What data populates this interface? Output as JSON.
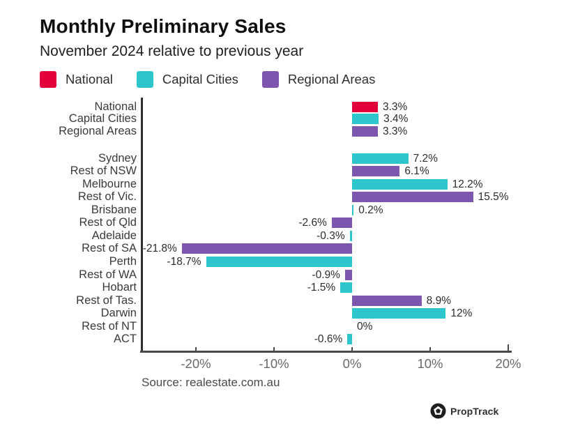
{
  "header": {
    "title": "Monthly Preliminary Sales",
    "subtitle": "November 2024 relative to previous year"
  },
  "legend": [
    {
      "label": "National",
      "color": "#e4003b"
    },
    {
      "label": "Capital Cities",
      "color": "#2fc5cc"
    },
    {
      "label": "Regional Areas",
      "color": "#7d57ae"
    }
  ],
  "chart_data": {
    "type": "bar",
    "orientation": "horizontal",
    "title": "Monthly Preliminary Sales",
    "subtitle": "November 2024 relative to previous year",
    "xlabel": "",
    "ylabel": "",
    "xlim": [
      -27,
      20.5
    ],
    "x_tick_labels": [
      "-20%",
      "-10%",
      "0%",
      "10%",
      "20%"
    ],
    "x_tick_values": [
      -20,
      -10,
      0,
      10,
      20
    ],
    "grid": false,
    "legend_position": "top",
    "series_colors": {
      "National": "#e4003b",
      "Capital Cities": "#2fc5cc",
      "Regional Areas": "#7d57ae"
    },
    "rows": [
      {
        "category": "National",
        "value": 3.3,
        "label": "3.3%",
        "series": "National",
        "group": "summary"
      },
      {
        "category": "Capital Cities",
        "value": 3.4,
        "label": "3.4%",
        "series": "Capital Cities",
        "group": "summary"
      },
      {
        "category": "Regional Areas",
        "value": 3.3,
        "label": "3.3%",
        "series": "Regional Areas",
        "group": "summary"
      },
      {
        "category": "Sydney",
        "value": 7.2,
        "label": "7.2%",
        "series": "Capital Cities",
        "group": "regions"
      },
      {
        "category": "Rest of NSW",
        "value": 6.1,
        "label": "6.1%",
        "series": "Regional Areas",
        "group": "regions"
      },
      {
        "category": "Melbourne",
        "value": 12.2,
        "label": "12.2%",
        "series": "Capital Cities",
        "group": "regions"
      },
      {
        "category": "Rest of Vic.",
        "value": 15.5,
        "label": "15.5%",
        "series": "Regional Areas",
        "group": "regions"
      },
      {
        "category": "Brisbane",
        "value": 0.2,
        "label": "0.2%",
        "series": "Capital Cities",
        "group": "regions"
      },
      {
        "category": "Rest of Qld",
        "value": -2.6,
        "label": "-2.6%",
        "series": "Regional Areas",
        "group": "regions"
      },
      {
        "category": "Adelaide",
        "value": -0.3,
        "label": "-0.3%",
        "series": "Capital Cities",
        "group": "regions"
      },
      {
        "category": "Rest of SA",
        "value": -21.8,
        "label": "-21.8%",
        "series": "Regional Areas",
        "group": "regions"
      },
      {
        "category": "Perth",
        "value": -18.7,
        "label": "-18.7%",
        "series": "Capital Cities",
        "group": "regions"
      },
      {
        "category": "Rest of WA",
        "value": -0.9,
        "label": "-0.9%",
        "series": "Regional Areas",
        "group": "regions"
      },
      {
        "category": "Hobart",
        "value": -1.5,
        "label": "-1.5%",
        "series": "Capital Cities",
        "group": "regions"
      },
      {
        "category": "Rest of Tas.",
        "value": 8.9,
        "label": "8.9%",
        "series": "Regional Areas",
        "group": "regions"
      },
      {
        "category": "Darwin",
        "value": 12,
        "label": "12%",
        "series": "Capital Cities",
        "group": "regions"
      },
      {
        "category": "Rest of NT",
        "value": 0,
        "label": "0%",
        "series": "Regional Areas",
        "group": "regions"
      },
      {
        "category": "ACT",
        "value": -0.6,
        "label": "-0.6%",
        "series": "Capital Cities",
        "group": "regions"
      }
    ]
  },
  "source": "Source: realestate.com.au",
  "branding": {
    "name": "PropTrack"
  }
}
